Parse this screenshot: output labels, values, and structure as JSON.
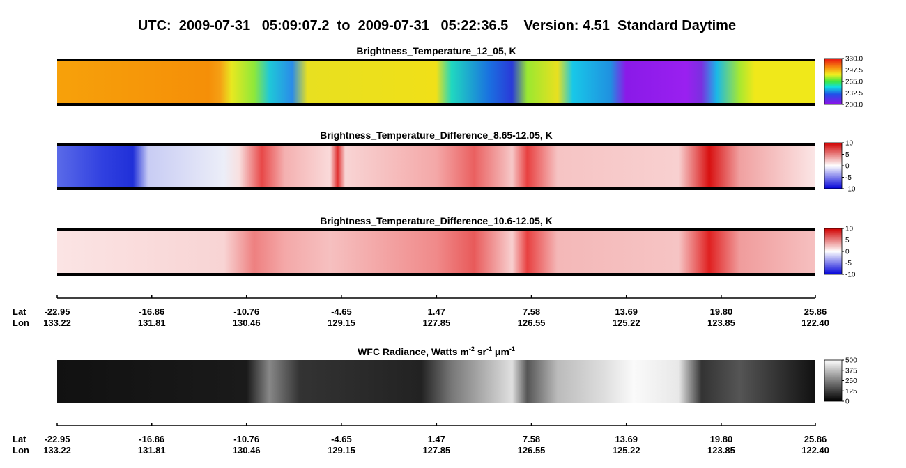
{
  "title": "UTC:  2009-07-31   05:09:07.2  to  2009-07-31   05:22:36.5    Version: 4.51  Standard Daytime",
  "panels": [
    {
      "title": "Brightness_Temperature_12_05, K",
      "colorbar_ticks": [
        {
          "value": 330,
          "label": "330.0"
        },
        {
          "value": 297.5,
          "label": "297.5"
        },
        {
          "value": 265,
          "label": "265.0"
        },
        {
          "value": 232.5,
          "label": "232.5"
        },
        {
          "value": 200,
          "label": "200.0"
        }
      ]
    },
    {
      "title": "Brightness_Temperature_Difference_8.65-12.05, K",
      "colorbar_ticks": [
        10,
        5,
        0,
        -5,
        -10
      ]
    },
    {
      "title": "Brightness_Temperature_Difference_10.6-12.05, K",
      "colorbar_ticks": [
        10,
        5,
        0,
        -5,
        -10
      ]
    },
    {
      "title_parts": [
        "WFC Radiance, Watts m",
        "-2",
        " sr",
        "-1",
        " μm",
        "-1"
      ],
      "colorbar_ticks": [
        500,
        375,
        250,
        125,
        0
      ]
    }
  ],
  "track_axes": [
    {
      "lat_label": "Lat",
      "lon_label": "Lon",
      "lat": [
        -22.95,
        -16.86,
        -10.76,
        -4.65,
        1.47,
        7.58,
        13.69,
        {
          "value": 19.8,
          "label": "19.80"
        },
        25.86
      ],
      "lon": [
        133.22,
        131.81,
        130.46,
        129.15,
        127.85,
        126.55,
        125.22,
        123.85,
        {
          "value": 122.4,
          "label": "122.40"
        }
      ]
    },
    {
      "lat_label": "Lat",
      "lon_label": "Lon",
      "lat": [
        -22.95,
        -16.86,
        -10.76,
        -4.65,
        1.47,
        7.58,
        13.69,
        {
          "value": 19.8,
          "label": "19.80"
        },
        25.86
      ],
      "lon": [
        133.22,
        131.81,
        130.46,
        129.15,
        127.85,
        126.55,
        125.22,
        123.85,
        {
          "value": 122.4,
          "label": "122.40"
        }
      ]
    }
  ]
}
